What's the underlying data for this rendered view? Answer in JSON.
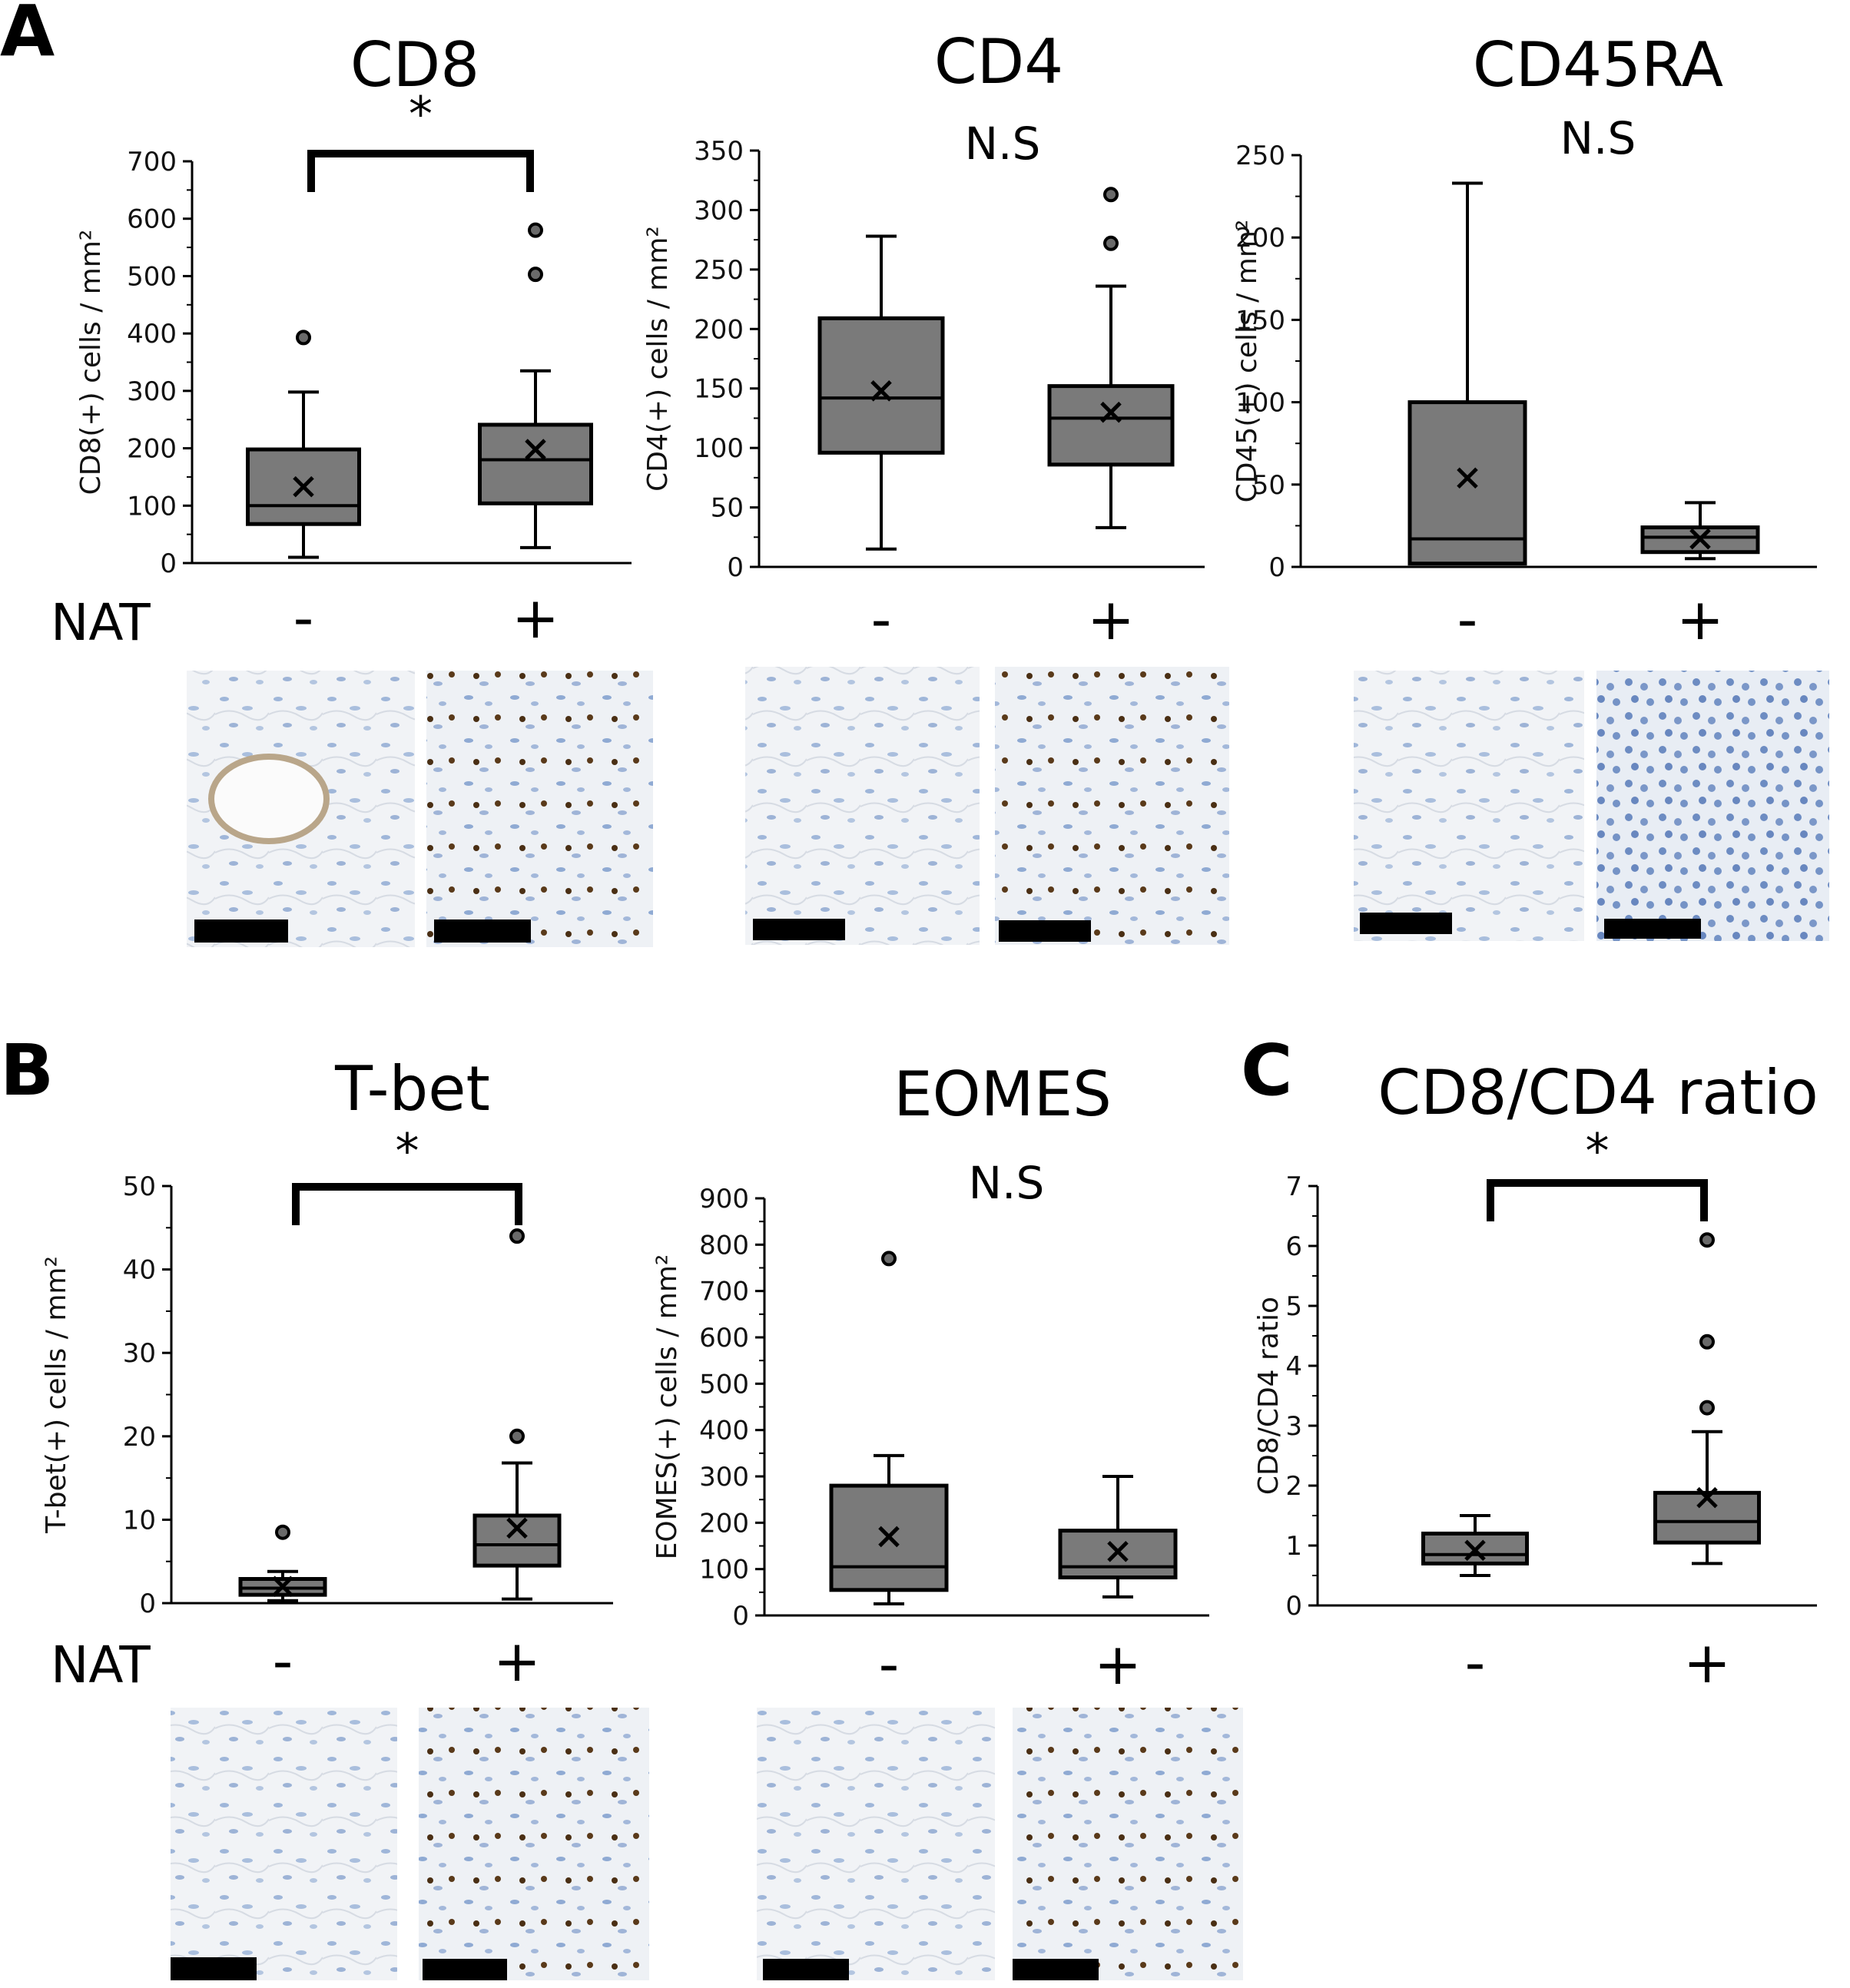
{
  "panel_labels": [
    "A",
    "B",
    "C"
  ],
  "nat_label": "NAT",
  "chart_data": [
    {
      "type": "box",
      "panel": "A",
      "title": "CD8",
      "significance": "*",
      "ylabel": "CD8(+) cells / mm²",
      "ylim": [
        0,
        700
      ],
      "yticks": [
        0,
        100,
        200,
        300,
        400,
        500,
        600,
        700
      ],
      "categories": [
        "-",
        "+"
      ],
      "series": [
        {
          "name": "-",
          "min": 10,
          "q1": 68,
          "median": 100,
          "q3": 198,
          "max": 298,
          "mean": 133,
          "outliers": [
            393
          ]
        },
        {
          "name": "+",
          "min": 27,
          "q1": 104,
          "median": 180,
          "q3": 241,
          "max": 335,
          "mean": 198,
          "outliers": [
            503,
            580
          ]
        }
      ]
    },
    {
      "type": "box",
      "panel": "A",
      "title": "CD4",
      "significance": "N.S",
      "ylabel": "CD4(+) cells / mm²",
      "ylim": [
        0,
        350
      ],
      "yticks": [
        0,
        50,
        100,
        150,
        200,
        250,
        300,
        350
      ],
      "categories": [
        "-",
        "+"
      ],
      "series": [
        {
          "name": "-",
          "min": 15,
          "q1": 96,
          "median": 142,
          "q3": 209,
          "max": 278,
          "mean": 148,
          "outliers": []
        },
        {
          "name": "+",
          "min": 33,
          "q1": 86,
          "median": 125,
          "q3": 152,
          "max": 236,
          "mean": 130,
          "outliers": [
            272,
            313
          ]
        }
      ]
    },
    {
      "type": "box",
      "panel": "A",
      "title": "CD45RA",
      "significance": "N.S",
      "ylabel": "CD45(+) cells / mm²",
      "ylim": [
        0,
        250
      ],
      "yticks": [
        0,
        50,
        100,
        150,
        200,
        250
      ],
      "categories": [
        "-",
        "+"
      ],
      "series": [
        {
          "name": "-",
          "min": 2,
          "q1": 2,
          "median": 17,
          "q3": 100,
          "max": 233,
          "mean": 54,
          "outliers": []
        },
        {
          "name": "+",
          "min": 5,
          "q1": 9,
          "median": 18,
          "q3": 24,
          "max": 39,
          "mean": 17,
          "outliers": []
        }
      ]
    },
    {
      "type": "box",
      "panel": "B",
      "title": "T-bet",
      "significance": "*",
      "ylabel": "T-bet(+) cells / mm²",
      "ylim": [
        0,
        50
      ],
      "yticks": [
        0,
        10,
        20,
        30,
        40,
        50
      ],
      "categories": [
        "-",
        "+"
      ],
      "series": [
        {
          "name": "-",
          "min": 0.3,
          "q1": 1,
          "median": 1.8,
          "q3": 2.9,
          "max": 3.8,
          "mean": 2,
          "outliers": [
            8.5
          ]
        },
        {
          "name": "+",
          "min": 0.5,
          "q1": 4.5,
          "median": 7,
          "q3": 10.5,
          "max": 16.8,
          "mean": 9,
          "outliers": [
            20,
            44
          ]
        }
      ]
    },
    {
      "type": "box",
      "panel": "B",
      "title": "EOMES",
      "significance": "N.S",
      "ylabel": "EOMES(+) cells / mm²",
      "ylim": [
        0,
        900
      ],
      "yticks": [
        0,
        100,
        200,
        300,
        400,
        500,
        600,
        700,
        800,
        900
      ],
      "categories": [
        "-",
        "+"
      ],
      "series": [
        {
          "name": "-",
          "min": 25,
          "q1": 55,
          "median": 105,
          "q3": 280,
          "max": 345,
          "mean": 170,
          "outliers": [
            770
          ]
        },
        {
          "name": "+",
          "min": 40,
          "q1": 82,
          "median": 105,
          "q3": 183,
          "max": 300,
          "mean": 138,
          "outliers": []
        }
      ]
    },
    {
      "type": "box",
      "panel": "C",
      "title": "CD8/CD4 ratio",
      "significance": "*",
      "ylabel": "CD8/CD4 ratio",
      "ylim": [
        0,
        7
      ],
      "yticks": [
        0,
        1,
        2,
        3,
        4,
        5,
        6,
        7
      ],
      "categories": [
        "-",
        "+"
      ],
      "series": [
        {
          "name": "-",
          "min": 0.5,
          "q1": 0.7,
          "median": 0.85,
          "q3": 1.2,
          "max": 1.5,
          "mean": 0.92,
          "outliers": []
        },
        {
          "name": "+",
          "min": 0.7,
          "q1": 1.05,
          "median": 1.4,
          "q3": 1.88,
          "max": 2.9,
          "mean": 1.8,
          "outliers": [
            3.3,
            4.4,
            6.1
          ]
        }
      ]
    }
  ],
  "colors": {
    "box_fill": "#7a7a7a",
    "line": "#000000",
    "outlier_fill": "#6a6a6a"
  }
}
